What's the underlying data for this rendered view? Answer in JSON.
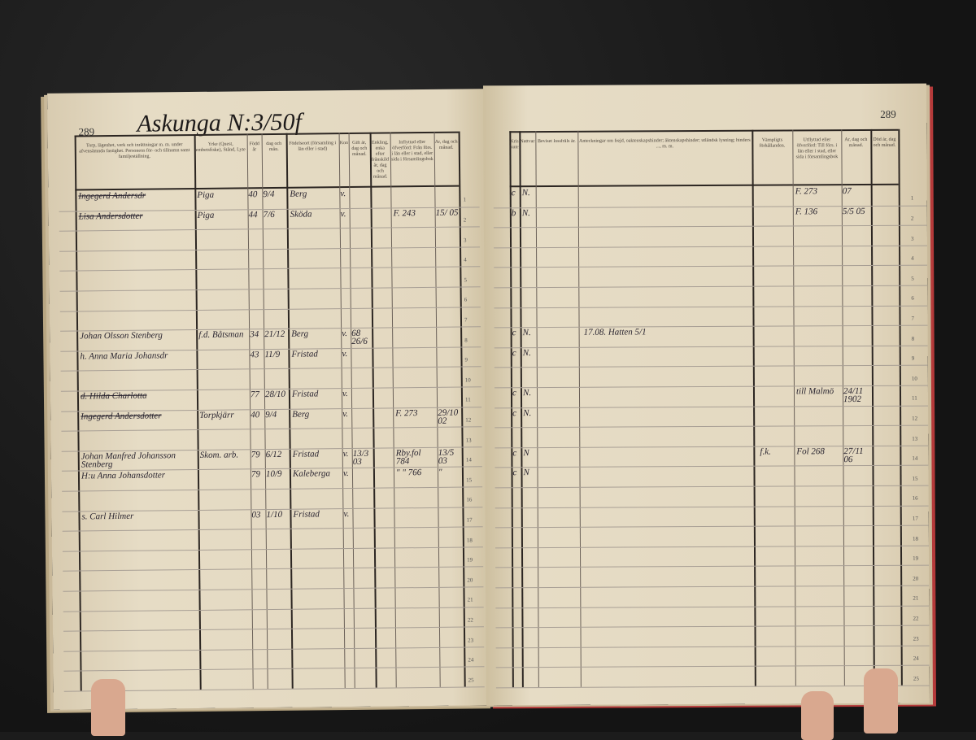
{
  "left_page": {
    "page_number": "289",
    "title": "Askunga N:3/50f",
    "headers": [
      "Torp, lägenhet, verk och inrättningar m. m. under afvensämnda fastighet. Personens för- och tillnamn samt familjeställning.",
      "Yrke (Quest, embetsfiske), Stånd, Lyte",
      "Född år",
      "dag och mån.",
      "Födelseort (församling i län eller i stad)",
      "Konfirmation",
      "Gift år, dag och månad.",
      "Enkling, enka efter frånskild år, dag och månad.",
      "Inflyttad eller öfverförd: Från förs. i län eller i stad, eller sida i församlingsbok",
      "År, dag och månad."
    ],
    "rows": [
      {
        "row": 1,
        "name": "Ingegerd Andersdr",
        "struck": true,
        "yrke": "Piga",
        "year": "40",
        "day": "9/4",
        "place": "Berg",
        "conf": "v."
      },
      {
        "row": 2,
        "name": "Lisa Andersdotter",
        "struck": true,
        "yrke": "Piga",
        "year": "44",
        "day": "7/6",
        "place": "Sköda",
        "conf": "v.",
        "from": "F. 243",
        "date": "15/ 05"
      },
      {
        "row": 8,
        "name": "Johan Olsson Stenberg",
        "yrke": "f.d. Båtsman",
        "year": "34",
        "day": "21/12",
        "place": "Berg",
        "conf": "v.",
        "married": "68 26/6"
      },
      {
        "row": 9,
        "name": "h. Anna Maria Johansdr",
        "year": "43",
        "day": "11/9",
        "place": "Fristad",
        "conf": "v."
      },
      {
        "row": 11,
        "name": "d. Hilda Charlotta",
        "struck": true,
        "year": "77",
        "day": "28/10",
        "place": "Fristad",
        "conf": "v."
      },
      {
        "row": 12,
        "name": "Ingegerd Andersdotter",
        "struck": true,
        "yrke": "Torpkjärr",
        "year": "40",
        "day": "9/4",
        "place": "Berg",
        "conf": "v.",
        "from": "F. 273",
        "date": "29/10 02"
      },
      {
        "row": 14,
        "name": "Johan Manfred Johansson Stenberg",
        "yrke": "Skom. arb.",
        "year": "79",
        "day": "6/12",
        "place": "Fristad",
        "conf": "v.",
        "married": "13/3 03",
        "from": "Rby.fol 784",
        "date": "13/5 03"
      },
      {
        "row": 15,
        "name": "H:u Anna Johansdotter",
        "year": "79",
        "day": "10/9",
        "place": "Kaleberga",
        "conf": "v.",
        "from": "\" \" 766",
        "date": "\""
      },
      {
        "row": 17,
        "name": "s. Carl Hilmer",
        "year": "03",
        "day": "1/10",
        "place": "Fristad",
        "conf": "v."
      }
    ]
  },
  "right_page": {
    "page_number": "289",
    "headers": [
      "Kristendoms-kunskap",
      "Nattvard",
      "Beviset lossfräls år.",
      "Anteckningar om frejd, oaktenskapshinder; äktenskapshinder; utländsk lysning; hinders ..., m. m.",
      "Värnpligts förhållanden.",
      "Utflyttad eller öfverförd: Till förs. i län eller i stad, eller sida i församlingsbok",
      "År, dag och månad.",
      "Död år, dag och månad."
    ],
    "rows": [
      {
        "row": 1,
        "kk": "c",
        "nv": "N.",
        "to": "F. 273",
        "date": "07"
      },
      {
        "row": 2,
        "kk": "b",
        "nv": "N.",
        "to": "F. 136",
        "date": "5/5 05"
      },
      {
        "row": 8,
        "kk": "c",
        "nv": "N.",
        "note": "17.08. Hatten 5/1"
      },
      {
        "row": 9,
        "kk": "c",
        "nv": "N."
      },
      {
        "row": 11,
        "kk": "c",
        "nv": "N.",
        "to": "till Malmö",
        "date": "24/11 1902"
      },
      {
        "row": 12,
        "kk": "c",
        "nv": "N."
      },
      {
        "row": 14,
        "kk": "c",
        "nv": "N",
        "mil": "f.k.",
        "to": "Fol 268",
        "date": "27/11 06"
      },
      {
        "row": 15,
        "kk": "c",
        "nv": "N"
      }
    ]
  }
}
